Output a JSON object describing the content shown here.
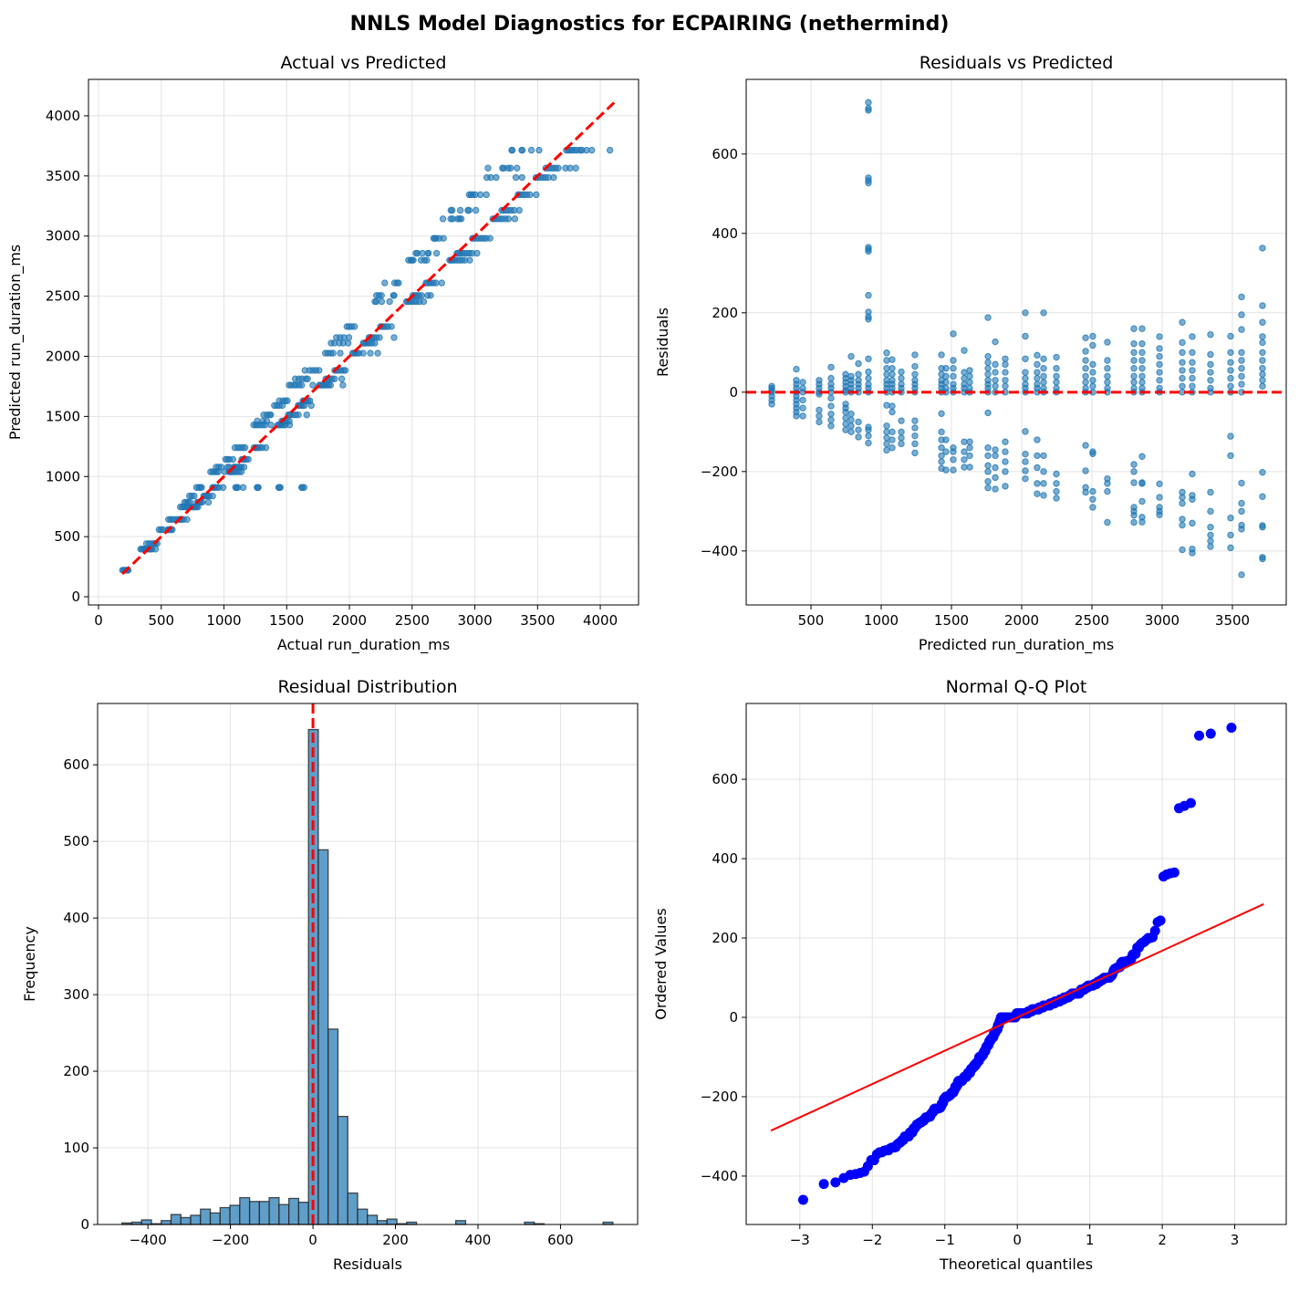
{
  "figure": {
    "title": "NNLS Model Diagnostics for ECPAIRING (nethermind)"
  },
  "colors": {
    "points": "#1f77b4",
    "reference": "#ff0000",
    "qq_points": "#0000ff",
    "hist_fill": "#5f9ec9"
  },
  "chart_data": [
    {
      "type": "scatter",
      "title": "Actual vs Predicted",
      "xlabel": "Actual run_duration_ms",
      "ylabel": "Predicted run_duration_ms",
      "xlim": [
        -80,
        4305
      ],
      "ylim": [
        -68,
        4303
      ],
      "xticks": [
        "0",
        "500",
        "1000",
        "1500",
        "2000",
        "2500",
        "3000",
        "3500",
        "4000"
      ],
      "yticks": [
        "0",
        "500",
        "1000",
        "1500",
        "2000",
        "2500",
        "3000",
        "3500",
        "4000"
      ],
      "identity_line": [
        190,
        4110
      ],
      "grid": true,
      "points_source": "actual = predicted + residual from Residuals vs Predicted clusters"
    },
    {
      "type": "scatter",
      "title": "Residuals vs Predicted",
      "xlabel": "Predicted run_duration_ms",
      "ylabel": "Residuals",
      "xlim": [
        39,
        3883
      ],
      "ylim": [
        -536,
        788
      ],
      "xticks": [
        "500",
        "1000",
        "1500",
        "2000",
        "2500",
        "3000",
        "3500"
      ],
      "yticks": [
        "−400",
        "−200",
        "0",
        "200",
        "400",
        "600"
      ],
      "zero_line": 0,
      "grid": true,
      "clusters": [
        {
          "predicted": 221,
          "residuals": [
            -30,
            -20,
            -10,
            0,
            5,
            10,
            15
          ]
        },
        {
          "predicted": 396,
          "residuals": [
            -60,
            -50,
            -40,
            -30,
            -20,
            -10,
            0,
            10,
            20,
            30,
            58
          ]
        },
        {
          "predicted": 442,
          "residuals": [
            -60,
            -40,
            -20,
            0,
            10,
            25
          ]
        },
        {
          "predicted": 558,
          "residuals": [
            -75,
            -60,
            -45,
            -5,
            0,
            10,
            20,
            30
          ]
        },
        {
          "predicted": 643,
          "residuals": [
            -85,
            -70,
            -55,
            -35,
            -15,
            0,
            10,
            20,
            35,
            63
          ]
        },
        {
          "predicted": 747,
          "residuals": [
            -95,
            -80,
            -65,
            -50,
            -40,
            -30,
            0,
            5,
            15,
            25,
            35,
            45
          ]
        },
        {
          "predicted": 786,
          "residuals": [
            -100,
            -85,
            -70,
            -55,
            0,
            10,
            20,
            30,
            40,
            90
          ]
        },
        {
          "predicted": 838,
          "residuals": [
            -113,
            -95,
            -75,
            0,
            10,
            20,
            30,
            45,
            72
          ]
        },
        {
          "predicted": 909,
          "residuals": [
            -128,
            -110,
            -95,
            -88,
            0,
            10,
            20,
            35,
            51,
            84,
            184,
            190,
            202,
            244,
            355,
            360,
            365,
            527,
            533,
            540,
            710,
            715,
            730
          ]
        },
        {
          "predicted": 1039,
          "residuals": [
            -146,
            -130,
            -115,
            -100,
            -85,
            -33,
            0,
            10,
            20,
            30,
            45,
            60,
            80,
            99
          ]
        },
        {
          "predicted": 1078,
          "residuals": [
            -140,
            -120,
            -100,
            -50,
            -35,
            0,
            10,
            20,
            30,
            45,
            60,
            82
          ]
        },
        {
          "predicted": 1143,
          "residuals": [
            -130,
            -115,
            -100,
            -72,
            0,
            10,
            20,
            35,
            51
          ]
        },
        {
          "predicted": 1240,
          "residuals": [
            -153,
            -130,
            -110,
            -90,
            -72,
            0,
            10,
            20,
            30,
            45,
            65,
            94
          ]
        },
        {
          "predicted": 1429,
          "residuals": [
            -192,
            -175,
            -160,
            -140,
            -120,
            -100,
            -54,
            0,
            10,
            20,
            30,
            45,
            60,
            94
          ]
        },
        {
          "predicted": 1461,
          "residuals": [
            -196,
            -150,
            -120,
            0,
            10,
            25,
            40,
            60
          ]
        },
        {
          "predicted": 1513,
          "residuals": [
            -196,
            -170,
            -150,
            -140,
            0,
            10,
            20,
            40,
            60,
            80,
            147
          ]
        },
        {
          "predicted": 1591,
          "residuals": [
            -189,
            -170,
            -150,
            -125,
            0,
            10,
            20,
            35,
            50,
            105
          ]
        },
        {
          "predicted": 1630,
          "residuals": [
            -189,
            -160,
            -140,
            -125,
            0,
            10,
            25,
            40,
            55
          ]
        },
        {
          "predicted": 1760,
          "residuals": [
            -241,
            -225,
            -200,
            -185,
            -160,
            -140,
            -52,
            0,
            10,
            20,
            30,
            45,
            60,
            75,
            90,
            188
          ]
        },
        {
          "predicted": 1812,
          "residuals": [
            -244,
            -215,
            -190,
            -160,
            -145,
            0,
            15,
            30,
            50,
            70,
            127
          ]
        },
        {
          "predicted": 1883,
          "residuals": [
            -237,
            -200,
            -175,
            -150,
            -125,
            0,
            15,
            30,
            50,
            70,
            84
          ]
        },
        {
          "predicted": 2026,
          "residuals": [
            -218,
            -198,
            -175,
            -156,
            -99,
            0,
            10,
            20,
            35,
            50,
            84,
            141,
            200
          ]
        },
        {
          "predicted": 2110,
          "residuals": [
            -256,
            -230,
            -190,
            -160,
            -120,
            0,
            10,
            20,
            35,
            50,
            70,
            93
          ]
        },
        {
          "predicted": 2156,
          "residuals": [
            -260,
            -230,
            -200,
            -160,
            0,
            10,
            25,
            40,
            60,
            84,
            200
          ]
        },
        {
          "predicted": 2247,
          "residuals": [
            -267,
            -250,
            -230,
            -206,
            0,
            10,
            25,
            40,
            60,
            88
          ]
        },
        {
          "predicted": 2455,
          "residuals": [
            -252,
            -240,
            -198,
            -134,
            0,
            10,
            25,
            40,
            60,
            80,
            103,
            137
          ]
        },
        {
          "predicted": 2506,
          "residuals": [
            -290,
            -270,
            -250,
            -155,
            -150,
            0,
            15,
            30,
            50,
            70,
            118,
            141
          ]
        },
        {
          "predicted": 2610,
          "residuals": [
            -328,
            -250,
            -230,
            -218,
            0,
            10,
            25,
            40,
            60,
            80,
            126
          ]
        },
        {
          "predicted": 2799,
          "residuals": [
            -328,
            -310,
            -300,
            -290,
            -228,
            -200,
            -182,
            0,
            10,
            25,
            40,
            60,
            80,
            100,
            122,
            160
          ]
        },
        {
          "predicted": 2857,
          "residuals": [
            -327,
            -315,
            -275,
            -230,
            -228,
            -162,
            0,
            10,
            25,
            40,
            60,
            80,
            100,
            122,
            160
          ]
        },
        {
          "predicted": 2981,
          "residuals": [
            -309,
            -300,
            -290,
            -265,
            -231,
            0,
            10,
            30,
            50,
            70,
            90,
            110,
            140
          ]
        },
        {
          "predicted": 3143,
          "residuals": [
            -397,
            -335,
            -320,
            -280,
            -265,
            -252,
            0,
            15,
            35,
            55,
            75,
            100,
            125,
            176
          ]
        },
        {
          "predicted": 3214,
          "residuals": [
            -405,
            -395,
            -330,
            -270,
            -260,
            -206,
            0,
            15,
            35,
            55,
            75,
            100,
            140
          ]
        },
        {
          "predicted": 3344,
          "residuals": [
            -389,
            -375,
            -360,
            -340,
            -300,
            -252,
            0,
            10,
            30,
            50,
            70,
            95,
            145
          ]
        },
        {
          "predicted": 3487,
          "residuals": [
            -392,
            -360,
            -317,
            -160,
            -111,
            0,
            15,
            35,
            55,
            75,
            100,
            141
          ]
        },
        {
          "predicted": 3565,
          "residuals": [
            -460,
            -345,
            -335,
            -300,
            -280,
            -229,
            0,
            20,
            40,
            60,
            80,
            100,
            158,
            195,
            240
          ]
        },
        {
          "predicted": 3714,
          "residuals": [
            -420,
            -416,
            -340,
            -336,
            -263,
            -202,
            15,
            30,
            45,
            60,
            80,
            100,
            125,
            140,
            176,
            218,
            363
          ]
        }
      ]
    },
    {
      "type": "bar",
      "title": "Residual Distribution",
      "xlabel": "Residuals",
      "ylabel": "Frequency",
      "xlim": [
        -522,
        787
      ],
      "ylim": [
        0,
        680
      ],
      "xticks": [
        "−400",
        "−200",
        "0",
        "200",
        "400",
        "600"
      ],
      "yticks": [
        "0",
        "100",
        "200",
        "300",
        "400",
        "500",
        "600"
      ],
      "bin_start": -463,
      "bin_width": 23.8,
      "counts": [
        2,
        3,
        6,
        1,
        5,
        13,
        9,
        12,
        20,
        15,
        22,
        25,
        35,
        30,
        30,
        35,
        26,
        34,
        29,
        646,
        489,
        255,
        141,
        41,
        20,
        12,
        5,
        7,
        1,
        3,
        0,
        0,
        0,
        0,
        5,
        0,
        0,
        0,
        0,
        0,
        0,
        3,
        1,
        0,
        0,
        0,
        0,
        0,
        0,
        3
      ],
      "zero_line": 0,
      "grid": true
    },
    {
      "type": "scatter",
      "title": "Normal Q-Q Plot",
      "xlabel": "Theoretical quantiles",
      "ylabel": "Ordered Values",
      "xlim": [
        -3.74,
        3.71
      ],
      "ylim": [
        -522,
        791
      ],
      "xticks": [
        "−3",
        "−2",
        "−1",
        "0",
        "1",
        "2",
        "3"
      ],
      "yticks": [
        "−400",
        "−200",
        "0",
        "200",
        "400",
        "600"
      ],
      "fit_line": {
        "slope": 84,
        "intercept": 0,
        "x_range": [
          -3.4,
          3.4
        ]
      },
      "grid": true
    }
  ]
}
